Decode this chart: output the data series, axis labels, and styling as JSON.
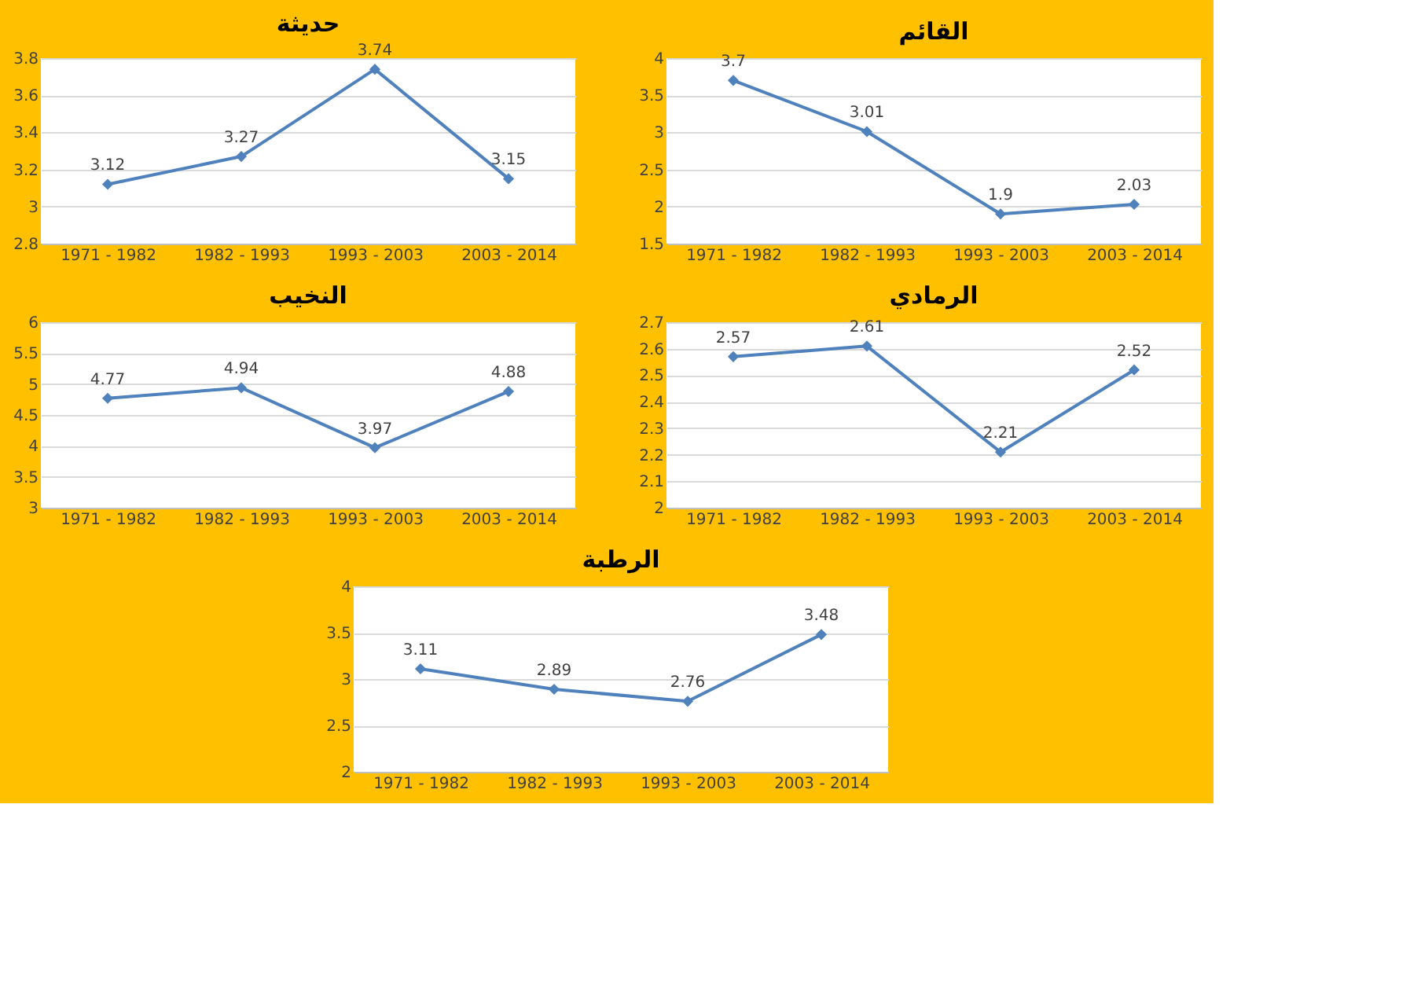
{
  "chart_data": [
    {
      "type": "line",
      "title": "حديثة",
      "categories": [
        "1971 - 1982",
        "1982 - 1993",
        "1993 - 2003",
        "2003 - 2014"
      ],
      "series": [
        {
          "color": "#4f81bd",
          "values": [
            3.12,
            3.27,
            3.74,
            3.15
          ]
        }
      ],
      "ylim": [
        2.8,
        3.8
      ],
      "yticks": [
        2.8,
        3,
        3.2,
        3.4,
        3.6,
        3.8
      ],
      "grid": "y",
      "data_labels": true,
      "marker": "diamond",
      "legend": false
    },
    {
      "type": "line",
      "title": "القائم",
      "categories": [
        "1971 - 1982",
        "1982 - 1993",
        "1993 - 2003",
        "2003 - 2014"
      ],
      "series": [
        {
          "color": "#4f81bd",
          "values": [
            3.7,
            3.01,
            1.9,
            2.03
          ]
        }
      ],
      "ylim": [
        1.5,
        4
      ],
      "yticks": [
        1.5,
        2,
        2.5,
        3,
        3.5,
        4
      ],
      "grid": "y",
      "data_labels": true,
      "marker": "diamond",
      "legend": false
    },
    {
      "type": "line",
      "title": "النخيب",
      "categories": [
        "1971 - 1982",
        "1982 - 1993",
        "1993 - 2003",
        "2003 - 2014"
      ],
      "series": [
        {
          "color": "#4f81bd",
          "values": [
            4.77,
            4.94,
            3.97,
            4.88
          ]
        }
      ],
      "ylim": [
        3,
        6
      ],
      "yticks": [
        3,
        3.5,
        4,
        4.5,
        5,
        5.5,
        6
      ],
      "grid": "y",
      "data_labels": true,
      "marker": "diamond",
      "legend": false
    },
    {
      "type": "line",
      "title": "الرمادي",
      "categories": [
        "1971 - 1982",
        "1982 - 1993",
        "1993 - 2003",
        "2003 - 2014"
      ],
      "series": [
        {
          "color": "#4f81bd",
          "values": [
            2.57,
            2.61,
            2.21,
            2.52
          ]
        }
      ],
      "ylim": [
        2,
        2.7
      ],
      "yticks": [
        2,
        2.1,
        2.2,
        2.3,
        2.4,
        2.5,
        2.6,
        2.7
      ],
      "grid": "y",
      "data_labels": true,
      "marker": "diamond",
      "legend": false
    },
    {
      "type": "line",
      "title": "الرطبة",
      "categories": [
        "1971 - 1982",
        "1982 - 1993",
        "1993 - 2003",
        "2003 - 2014"
      ],
      "series": [
        {
          "color": "#4f81bd",
          "values": [
            3.11,
            2.89,
            2.76,
            3.48
          ]
        }
      ],
      "ylim": [
        2,
        4
      ],
      "yticks": [
        2,
        2.5,
        3,
        3.5,
        4
      ],
      "grid": "y",
      "data_labels": true,
      "marker": "diamond",
      "legend": false
    }
  ]
}
